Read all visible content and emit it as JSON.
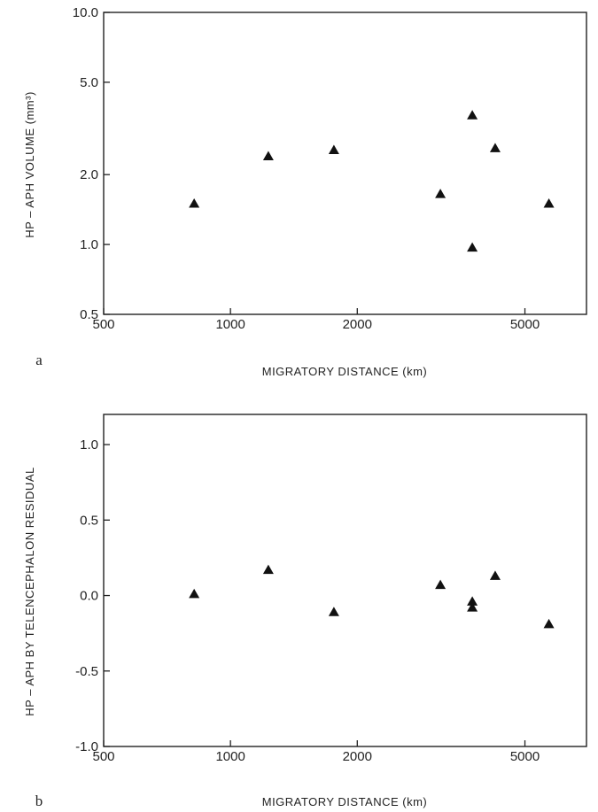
{
  "chart_data": [
    {
      "type": "scatter",
      "panel_label": "a",
      "xlabel": "MIGRATORY DISTANCE (km)",
      "ylabel": "HP – APH VOLUME (mm³)",
      "x_scale": "log",
      "y_scale": "log",
      "xlim": [
        500,
        7000
      ],
      "ylim": [
        0.5,
        10.0
      ],
      "x_ticks": [
        500,
        1000,
        2000,
        5000
      ],
      "x_tick_labels": [
        "500",
        "1000",
        "2000",
        "5000"
      ],
      "y_ticks": [
        0.5,
        1.0,
        2.0,
        5.0,
        10.0
      ],
      "y_tick_labels": [
        "0.5",
        "1.0",
        "2.0",
        "5.0",
        "10.0"
      ],
      "marker": "triangle",
      "points": [
        {
          "x": 820,
          "y": 1.5
        },
        {
          "x": 1230,
          "y": 2.4
        },
        {
          "x": 1760,
          "y": 2.55
        },
        {
          "x": 3150,
          "y": 1.65
        },
        {
          "x": 3750,
          "y": 3.6
        },
        {
          "x": 3750,
          "y": 0.97
        },
        {
          "x": 4250,
          "y": 2.6
        },
        {
          "x": 5700,
          "y": 1.5
        }
      ]
    },
    {
      "type": "scatter",
      "panel_label": "b",
      "xlabel": "MIGRATORY DISTANCE (km)",
      "ylabel": "HP – APH BY TELENCEPHALON RESIDUAL",
      "x_scale": "log",
      "y_scale": "linear",
      "xlim": [
        500,
        7000
      ],
      "ylim": [
        -1.0,
        1.2
      ],
      "x_ticks": [
        500,
        1000,
        2000,
        5000
      ],
      "x_tick_labels": [
        "500",
        "1000",
        "2000",
        "5000"
      ],
      "y_ticks": [
        -1.0,
        -0.5,
        0.0,
        0.5,
        1.0
      ],
      "y_tick_labels": [
        "-1.0",
        "-0.5",
        "0.0",
        "0.5",
        "1.0"
      ],
      "marker": "triangle",
      "points": [
        {
          "x": 820,
          "y": 0.01
        },
        {
          "x": 1230,
          "y": 0.17
        },
        {
          "x": 1760,
          "y": -0.11
        },
        {
          "x": 3150,
          "y": 0.07
        },
        {
          "x": 3750,
          "y": -0.04
        },
        {
          "x": 3750,
          "y": -0.08
        },
        {
          "x": 4250,
          "y": 0.13
        },
        {
          "x": 5700,
          "y": -0.19
        }
      ]
    }
  ]
}
